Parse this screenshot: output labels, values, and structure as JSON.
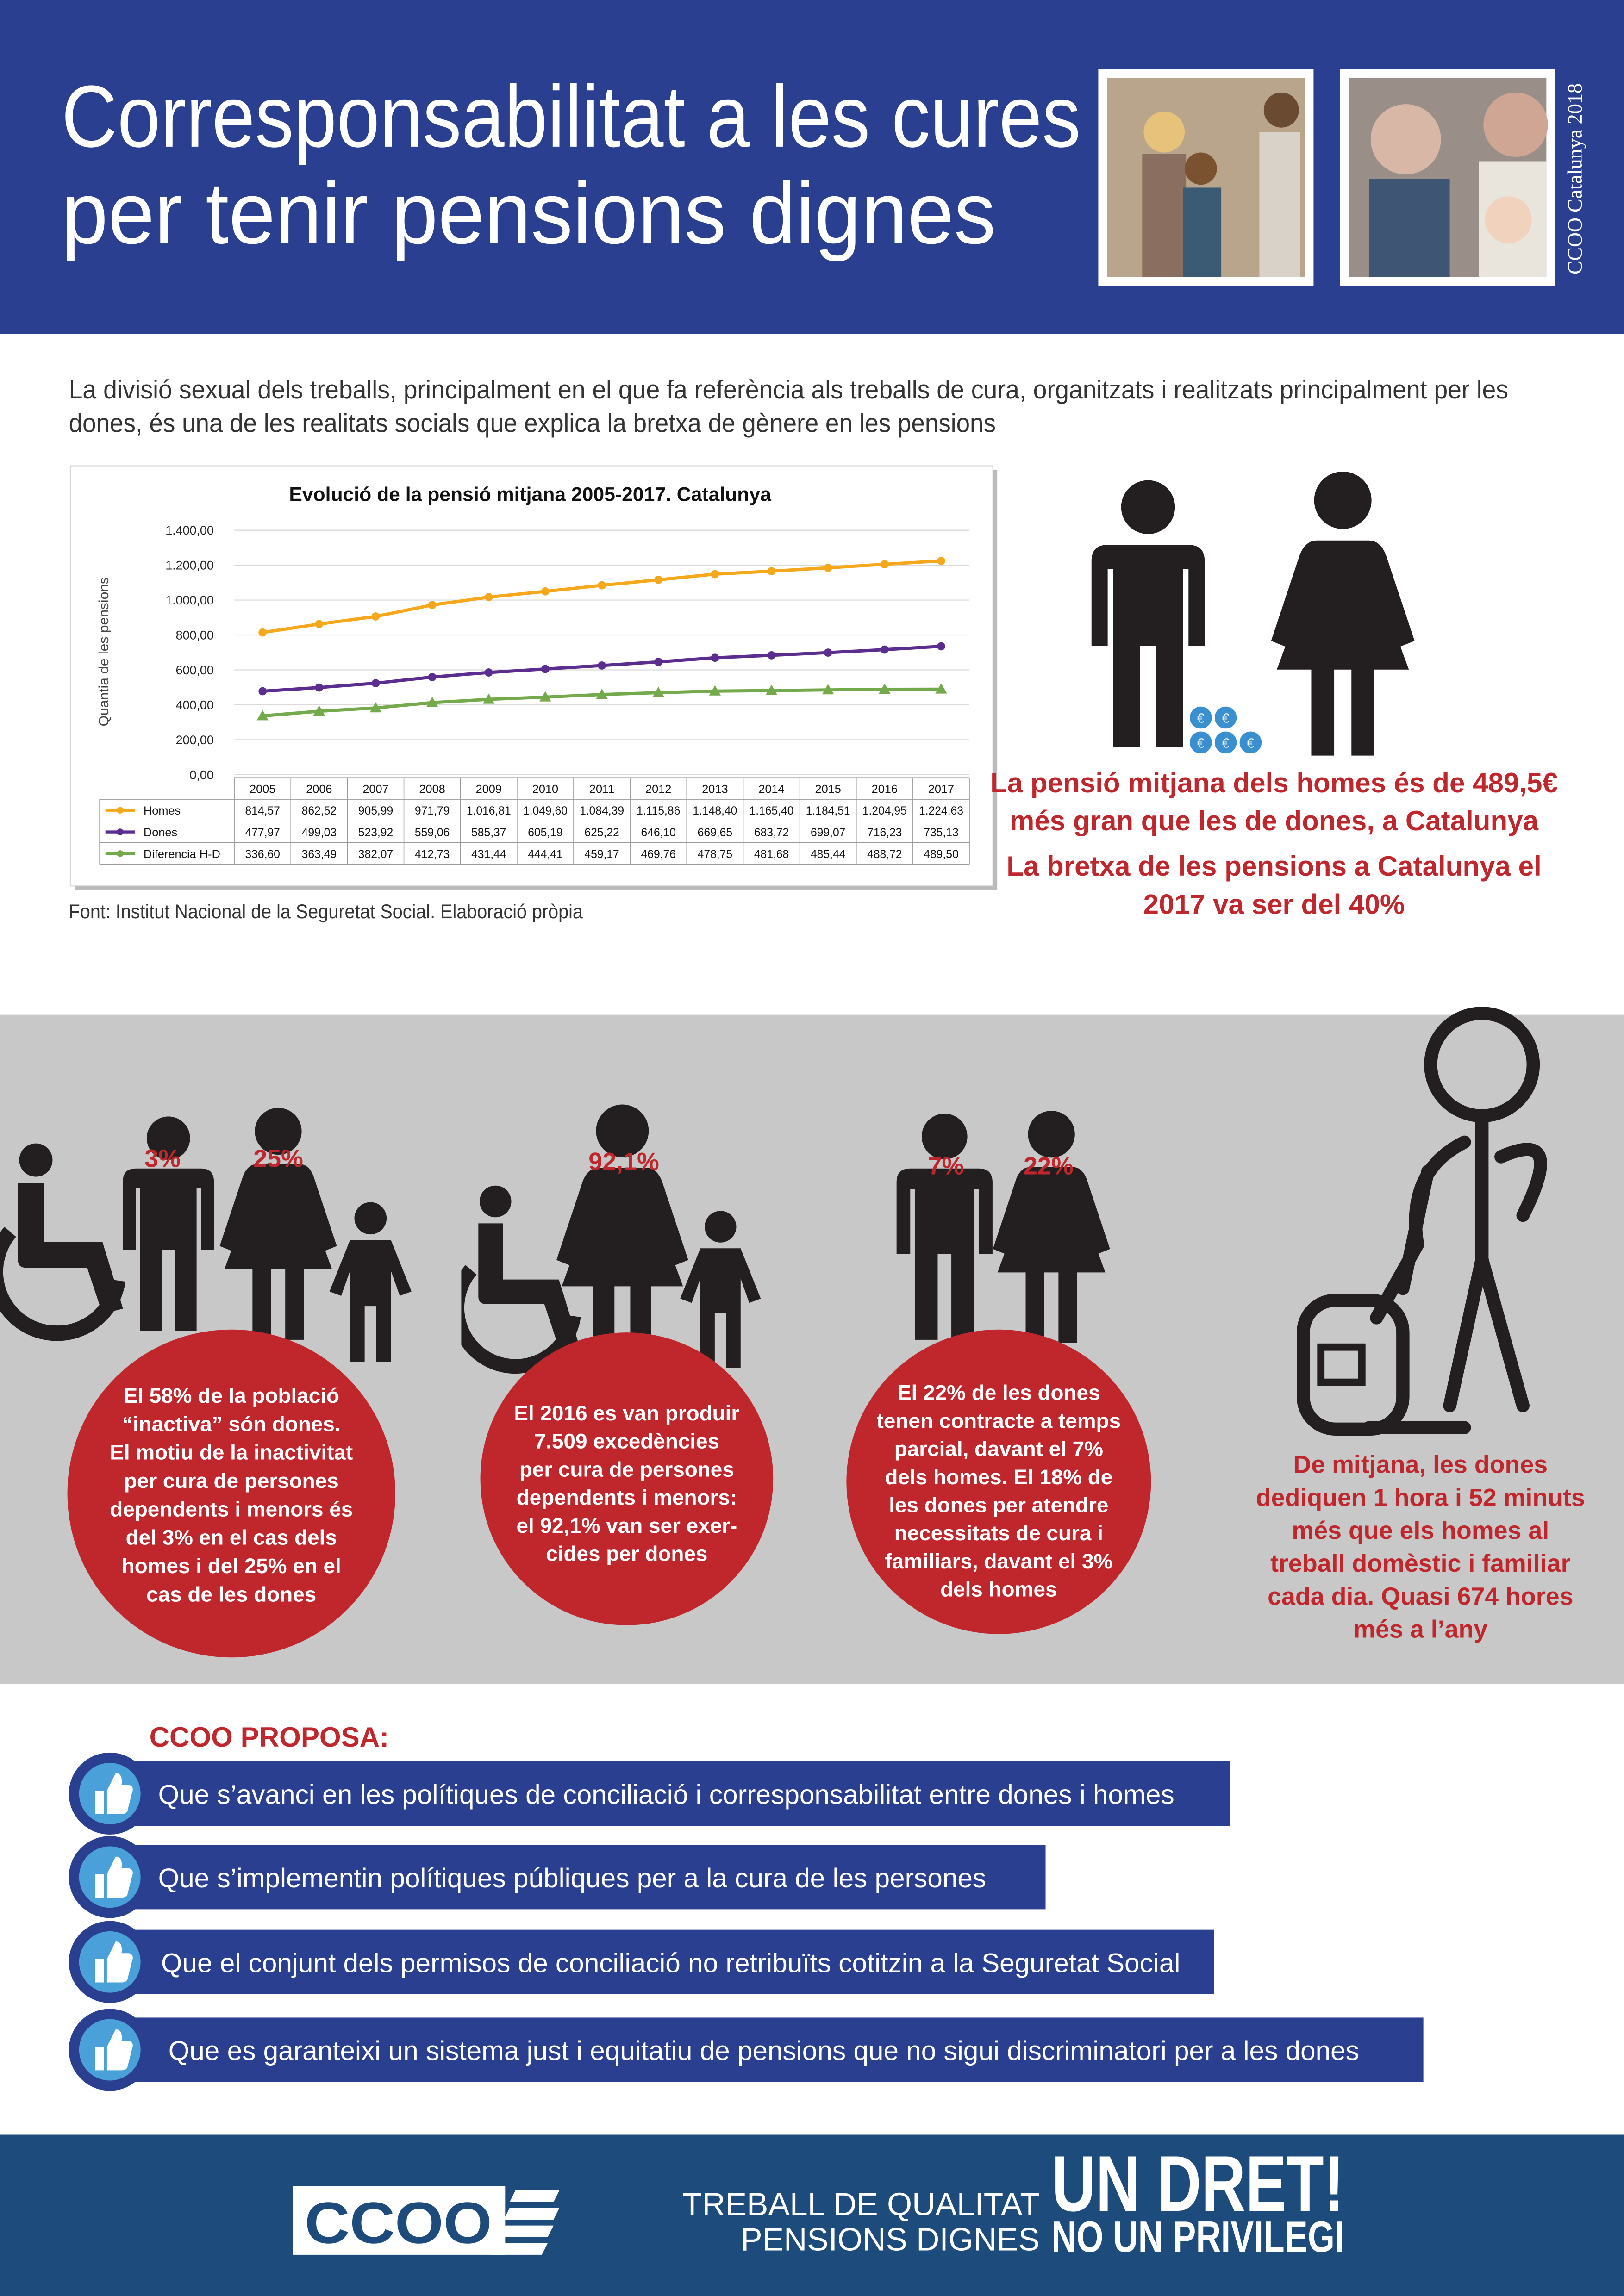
{
  "header": {
    "title": [
      "Corresponsabilitat a les cures",
      "per tenir pensions dignes"
    ],
    "side_label": "CCOO Catalunya 2018"
  },
  "intro": [
    "La divisió sexual dels treballs, principalment en el que fa referència als treballs de cura, organitzats i realitzats principalment per les",
    "dones, és una de les realitats socials que explica la bretxa de gènere en les pensions"
  ],
  "chart": {
    "type": "line",
    "title": "Evolució de la pensió mitjana 2005-2017. Catalunya",
    "y_label": "Quantia de les pensions",
    "categories": [
      "2005",
      "2006",
      "2007",
      "2008",
      "2009",
      "2010",
      "2011",
      "2012",
      "2013",
      "2014",
      "2015",
      "2016",
      "2017"
    ],
    "ylim": [
      0,
      1400
    ],
    "yticks": [
      {
        "value": 0,
        "label": "0,00"
      },
      {
        "value": 200,
        "label": "200,00"
      },
      {
        "value": 400,
        "label": "400,00"
      },
      {
        "value": 600,
        "label": "600,00"
      },
      {
        "value": 800,
        "label": "800,00"
      },
      {
        "value": 1000,
        "label": "1.000,00"
      },
      {
        "value": 1200,
        "label": "1.200,00"
      },
      {
        "value": 1400,
        "label": "1.400,00"
      }
    ],
    "grid": true,
    "series": [
      {
        "name": "Homes",
        "color": "#f5a81c",
        "marker": "circle",
        "values": [
          814.57,
          862.52,
          905.99,
          971.79,
          1016.81,
          1049.6,
          1084.39,
          1115.86,
          1148.4,
          1165.4,
          1184.51,
          1204.95,
          1224.63
        ],
        "value_labels": [
          "814,57",
          "862,52",
          "905,99",
          "971,79",
          "1.016,81",
          "1.049,60",
          "1.084,39",
          "1.115,86",
          "1.148,40",
          "1.165,40",
          "1.184,51",
          "1.204,95",
          "1.224,63"
        ]
      },
      {
        "name": "Dones",
        "color": "#5b2d8e",
        "marker": "circle",
        "values": [
          477.97,
          499.03,
          523.92,
          559.06,
          585.37,
          605.19,
          625.22,
          646.1,
          669.65,
          683.72,
          699.07,
          716.23,
          735.13
        ],
        "value_labels": [
          "477,97",
          "499,03",
          "523,92",
          "559,06",
          "585,37",
          "605,19",
          "625,22",
          "646,10",
          "669,65",
          "683,72",
          "699,07",
          "716,23",
          "735,13"
        ]
      },
      {
        "name": "Diferencia H-D",
        "color": "#74a94c",
        "marker": "triangle",
        "values": [
          336.6,
          363.49,
          382.07,
          412.73,
          431.44,
          444.41,
          459.17,
          469.76,
          478.75,
          481.68,
          485.44,
          488.72,
          489.5
        ],
        "value_labels": [
          "336,60",
          "363,49",
          "382,07",
          "412,73",
          "431,44",
          "444,41",
          "459,17",
          "469,76",
          "478,75",
          "481,68",
          "485,44",
          "488,72",
          "489,50"
        ]
      }
    ]
  },
  "source": "Font: Institut Nacional de la Seguretat Social. Elaboració pròpia",
  "coin_symbol": "€",
  "gap_stats": [
    [
      "La pensió mitjana dels homes és de 489,5€",
      "més gran que les de dones, a Catalunya"
    ],
    [
      "La bretxa de les pensions a Catalunya el",
      "2017 va ser del 40%"
    ]
  ],
  "figures": [
    {
      "percents": [
        "3%",
        "25%"
      ],
      "text": [
        "El 58% de la població",
        "“inactiva” són dones.",
        "El motiu de la inactivitat",
        "per cura de persones",
        "dependents i menors és",
        "del 3% en el cas dels",
        "homes i del 25% en el",
        "cas de les dones"
      ]
    },
    {
      "percents": [
        "92,1%"
      ],
      "text": [
        "El 2016 es van produir",
        "7.509 excedències",
        "per cura de persones",
        "dependents i menors:",
        "el 92,1% van ser exer-",
        "cides per dones"
      ]
    },
    {
      "percents": [
        "7%",
        "22%"
      ],
      "text": [
        "El 22% de les dones",
        "tenen contracte a temps",
        "parcial, davant el 7%",
        "dels homes. El 18% de",
        "les dones per atendre",
        "necessitats de cura i",
        "familiars, davant el 3%",
        "dels homes"
      ]
    },
    {
      "text": [
        "De mitjana, les dones",
        "dediquen 1 hora i 52 minuts",
        "més que els homes al",
        "treball domèstic i familiar",
        "cada dia. Quasi 674 hores",
        "més a l’any"
      ]
    }
  ],
  "proposals": {
    "heading": "CCOO PROPOSA:",
    "items": [
      "Que s’avanci en les polítiques de conciliació i corresponsabilitat entre dones i homes",
      "Que s’implementin polítiques públiques per a la cura de les persones",
      "Que el conjunt dels permisos de conciliació no retribuïts cotitzin a la Seguretat Social",
      "Que es garanteixi un sistema just i equitatiu de pensions que no sigui discriminatori per a les dones"
    ]
  },
  "footer": {
    "logo": "CCOO",
    "slogan": [
      "TREBALL DE QUALITAT",
      "PENSIONS DIGNES"
    ],
    "motto": [
      "UN DRET!",
      "NO UN PRIVILEGI"
    ]
  }
}
